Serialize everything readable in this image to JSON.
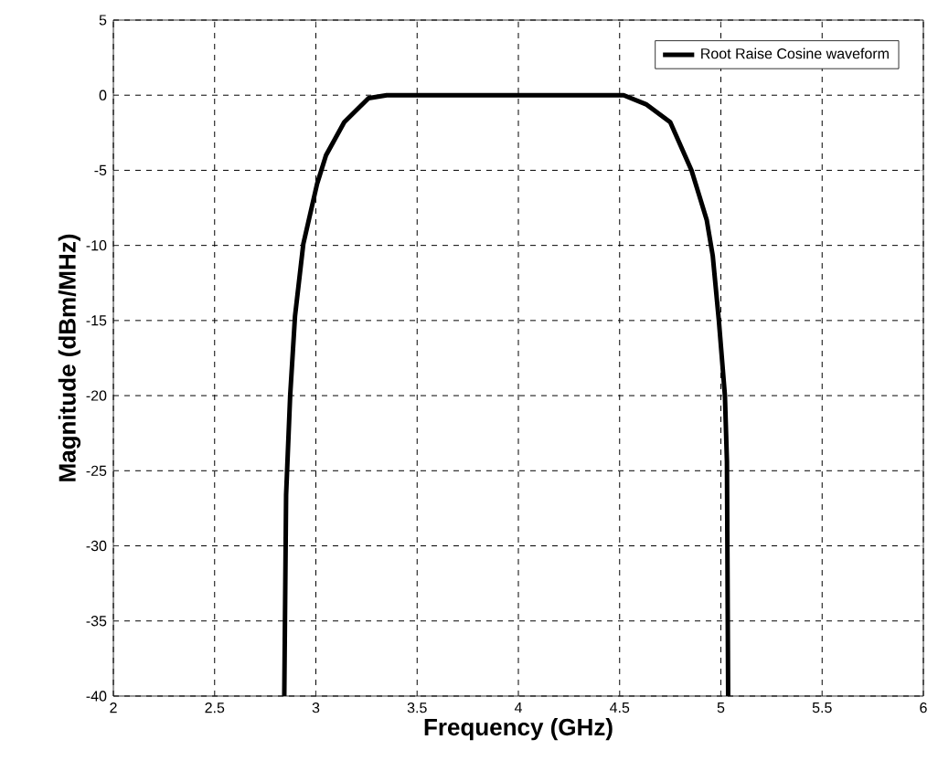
{
  "chart_data": {
    "type": "line",
    "xlabel": "Frequency (GHz)",
    "ylabel": "Magnitude (dBm/MHz)",
    "xlim": [
      2,
      6
    ],
    "xticks": [
      2,
      2.5,
      3,
      3.5,
      4,
      4.5,
      5,
      5.5,
      6
    ],
    "ylim": [
      -40,
      5
    ],
    "yticks": [
      -40,
      -35,
      -30,
      -25,
      -20,
      -15,
      -10,
      -5,
      0,
      5
    ],
    "grid": true,
    "legend": "top right",
    "line_style": "solid",
    "marker": "none",
    "series": [
      {
        "name": "Root Raise Cosine waveform",
        "color": "#000000",
        "x": [
          2.844,
          2.853,
          2.873,
          2.897,
          2.938,
          3.006,
          3.05,
          3.14,
          3.26,
          3.35,
          4.52,
          4.63,
          4.75,
          4.855,
          4.93,
          4.96,
          4.99,
          5.02,
          5.03,
          5.036
        ],
        "values": [
          -40,
          -26.6,
          -20,
          -14.7,
          -9.9,
          -5.9,
          -4.0,
          -1.8,
          -0.2,
          0,
          0,
          -0.6,
          -1.8,
          -5.0,
          -8.3,
          -10.7,
          -15,
          -20,
          -24.4,
          -40
        ]
      }
    ]
  }
}
